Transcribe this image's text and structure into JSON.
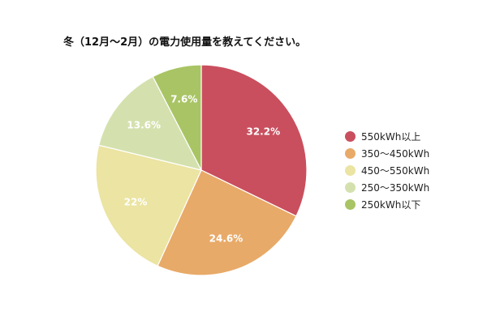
{
  "chart_data": {
    "type": "pie",
    "title": "冬（12月〜2月）の電力使用量を教えてください。",
    "categories": [
      "550kWh以上",
      "350〜450kWh",
      "450〜550kWh",
      "250〜350kWh",
      "250kWh以下"
    ],
    "values": [
      32.2,
      24.6,
      22,
      13.6,
      7.6
    ],
    "value_labels": [
      "32.2%",
      "24.6%",
      "22%",
      "13.6%",
      "7.6%"
    ],
    "colors": [
      "#c94f5e",
      "#e8aa68",
      "#ebe4a2",
      "#d4e1ae",
      "#a9c464"
    ],
    "legend_position": "right",
    "start_angle": "top",
    "direction": "clockwise"
  }
}
